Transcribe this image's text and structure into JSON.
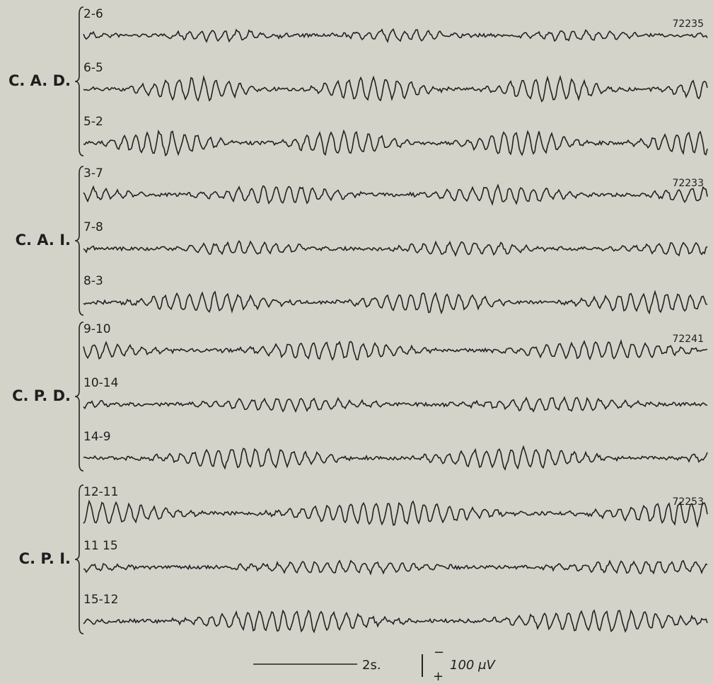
{
  "groups": [
    {
      "label": "C. A. D.",
      "record": "72235",
      "channels": [
        "2-6",
        "6-5",
        "5-2"
      ]
    },
    {
      "label": "C. A. I.",
      "record": "72233",
      "channels": [
        "3-7",
        "7-8",
        "8-3"
      ]
    },
    {
      "label": "C. P. D.",
      "record": "72241",
      "channels": [
        "9-10",
        "10-14",
        "14-9"
      ]
    },
    {
      "label": "C. P. I.",
      "record": "72253",
      "channels": [
        "12-11",
        "11 15",
        "15-12"
      ]
    }
  ],
  "calibration": {
    "time": "2s.",
    "minus": "−",
    "plus": "+",
    "voltage": "100 μV"
  }
}
